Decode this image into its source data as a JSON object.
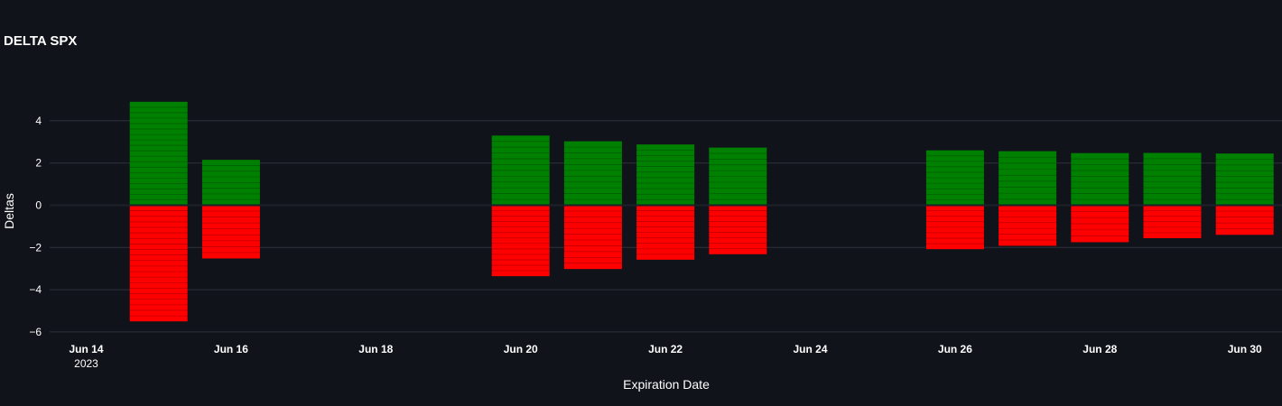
{
  "colors": {
    "background": "#10131a",
    "grid": "#2f333d",
    "positive": "#008000",
    "negative": "#ff0000",
    "text": "#ffffff"
  },
  "chart_data": {
    "type": "bar",
    "title": "DELTA SPX",
    "xlabel": "Expiration Date",
    "ylabel": "Deltas",
    "barmode": "relative",
    "x_ticks": [
      {
        "date": "2023-06-14",
        "label": "Jun 14",
        "sub": "2023"
      },
      {
        "date": "2023-06-16",
        "label": "Jun 16",
        "sub": ""
      },
      {
        "date": "2023-06-18",
        "label": "Jun 18",
        "sub": ""
      },
      {
        "date": "2023-06-20",
        "label": "Jun 20",
        "sub": ""
      },
      {
        "date": "2023-06-22",
        "label": "Jun 22",
        "sub": ""
      },
      {
        "date": "2023-06-24",
        "label": "Jun 24",
        "sub": ""
      },
      {
        "date": "2023-06-26",
        "label": "Jun 26",
        "sub": ""
      },
      {
        "date": "2023-06-28",
        "label": "Jun 28",
        "sub": ""
      },
      {
        "date": "2023-06-30",
        "label": "Jun 30",
        "sub": ""
      }
    ],
    "y_ticks": [
      4,
      2,
      0,
      -2,
      -4,
      -6
    ],
    "y_tick_labels": [
      "4",
      "2",
      "0",
      "−2",
      "−4",
      "−6"
    ],
    "ylim": [
      -6.6,
      5.2
    ],
    "xlim": [
      "2023-06-13",
      "2023-06-30"
    ],
    "grid": true,
    "series": [
      {
        "color": "#008000",
        "x": [
          "2023-06-15",
          "2023-06-16",
          "2023-06-20",
          "2023-06-21",
          "2023-06-22",
          "2023-06-23",
          "2023-06-26",
          "2023-06-27",
          "2023-06-28",
          "2023-06-29",
          "2023-06-30"
        ],
        "values": [
          4.9,
          2.15,
          3.3,
          3.03,
          2.88,
          2.73,
          2.6,
          2.56,
          2.47,
          2.48,
          2.45
        ]
      },
      {
        "color": "#ff0000",
        "x": [
          "2023-06-15",
          "2023-06-16",
          "2023-06-20",
          "2023-06-21",
          "2023-06-22",
          "2023-06-23",
          "2023-06-26",
          "2023-06-27",
          "2023-06-28",
          "2023-06-29",
          "2023-06-30"
        ],
        "values": [
          -5.5,
          -2.52,
          -3.36,
          -3.02,
          -2.58,
          -2.32,
          -2.08,
          -1.92,
          -1.75,
          -1.56,
          -1.4
        ]
      }
    ]
  }
}
